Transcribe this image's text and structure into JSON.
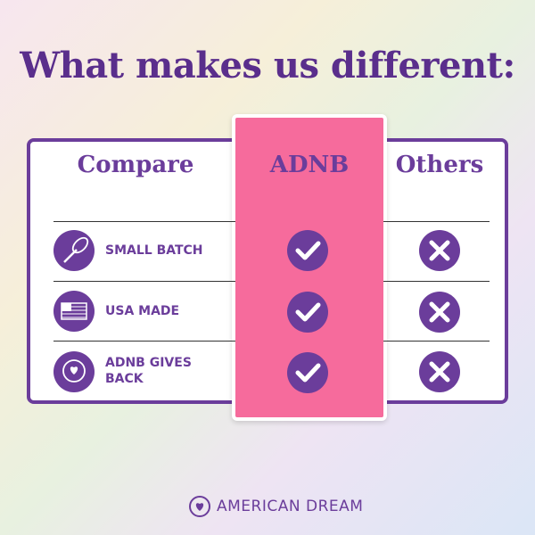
{
  "title": "What makes us different:",
  "table": {
    "headers": [
      "Compare",
      "ADNB",
      "Others"
    ],
    "rows": [
      "SMALL BATCH",
      "USA MADE",
      "ADNB GIVES BACK"
    ]
  },
  "footer": {
    "brand": "AMERICAN DREAM"
  }
}
